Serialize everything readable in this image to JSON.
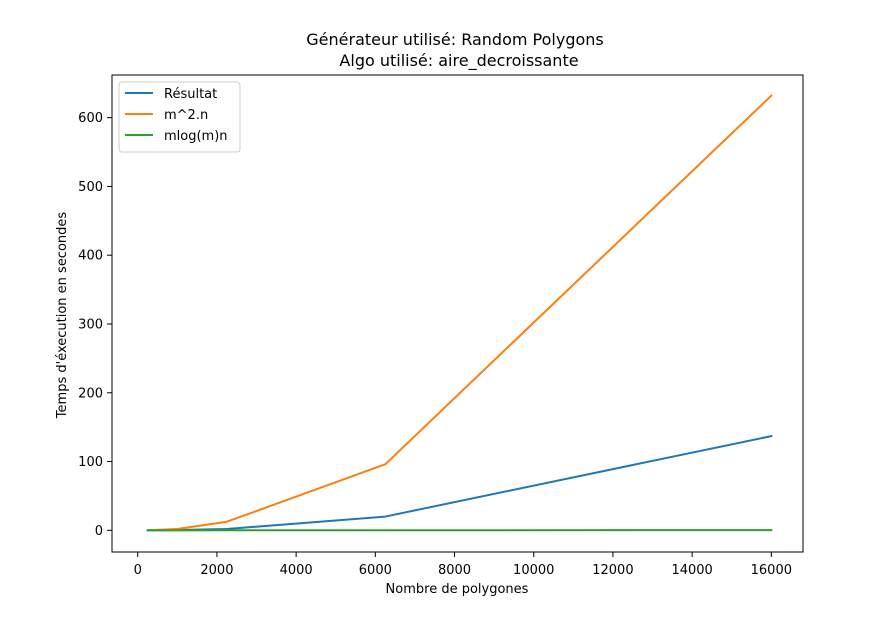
{
  "chart_data": {
    "type": "line",
    "title_line1": "Générateur utilisé: Random Polygons",
    "title_line2": "Algo utilisé: aire_decroissante",
    "xlabel": "Nombre de polygones",
    "ylabel": "Temps d'éxecution en secondes",
    "xlim": [
      -650,
      16800
    ],
    "ylim": [
      -31.5,
      662
    ],
    "xticks": [
      0,
      2000,
      4000,
      6000,
      8000,
      10000,
      12000,
      14000,
      16000
    ],
    "yticks": [
      0,
      100,
      200,
      300,
      400,
      500,
      600
    ],
    "legend_position": "top-left",
    "grid": false,
    "series": [
      {
        "name": "Résultat",
        "color": "#1f77b4",
        "x": [
          250,
          1000,
          2250,
          6250,
          16000
        ],
        "y": [
          0.05,
          0.4,
          2.0,
          20.0,
          137.0
        ]
      },
      {
        "name": "m^2.n",
        "color": "#ff7f0e",
        "x": [
          250,
          1000,
          2250,
          6250,
          16000
        ],
        "y": [
          0.1,
          2.0,
          12.5,
          96.0,
          632.0
        ]
      },
      {
        "name": "mlog(m)n",
        "color": "#2ca02c",
        "x": [
          250,
          1000,
          2250,
          6250,
          16000
        ],
        "y": [
          0.0,
          0.01,
          0.03,
          0.1,
          0.3
        ]
      }
    ]
  }
}
